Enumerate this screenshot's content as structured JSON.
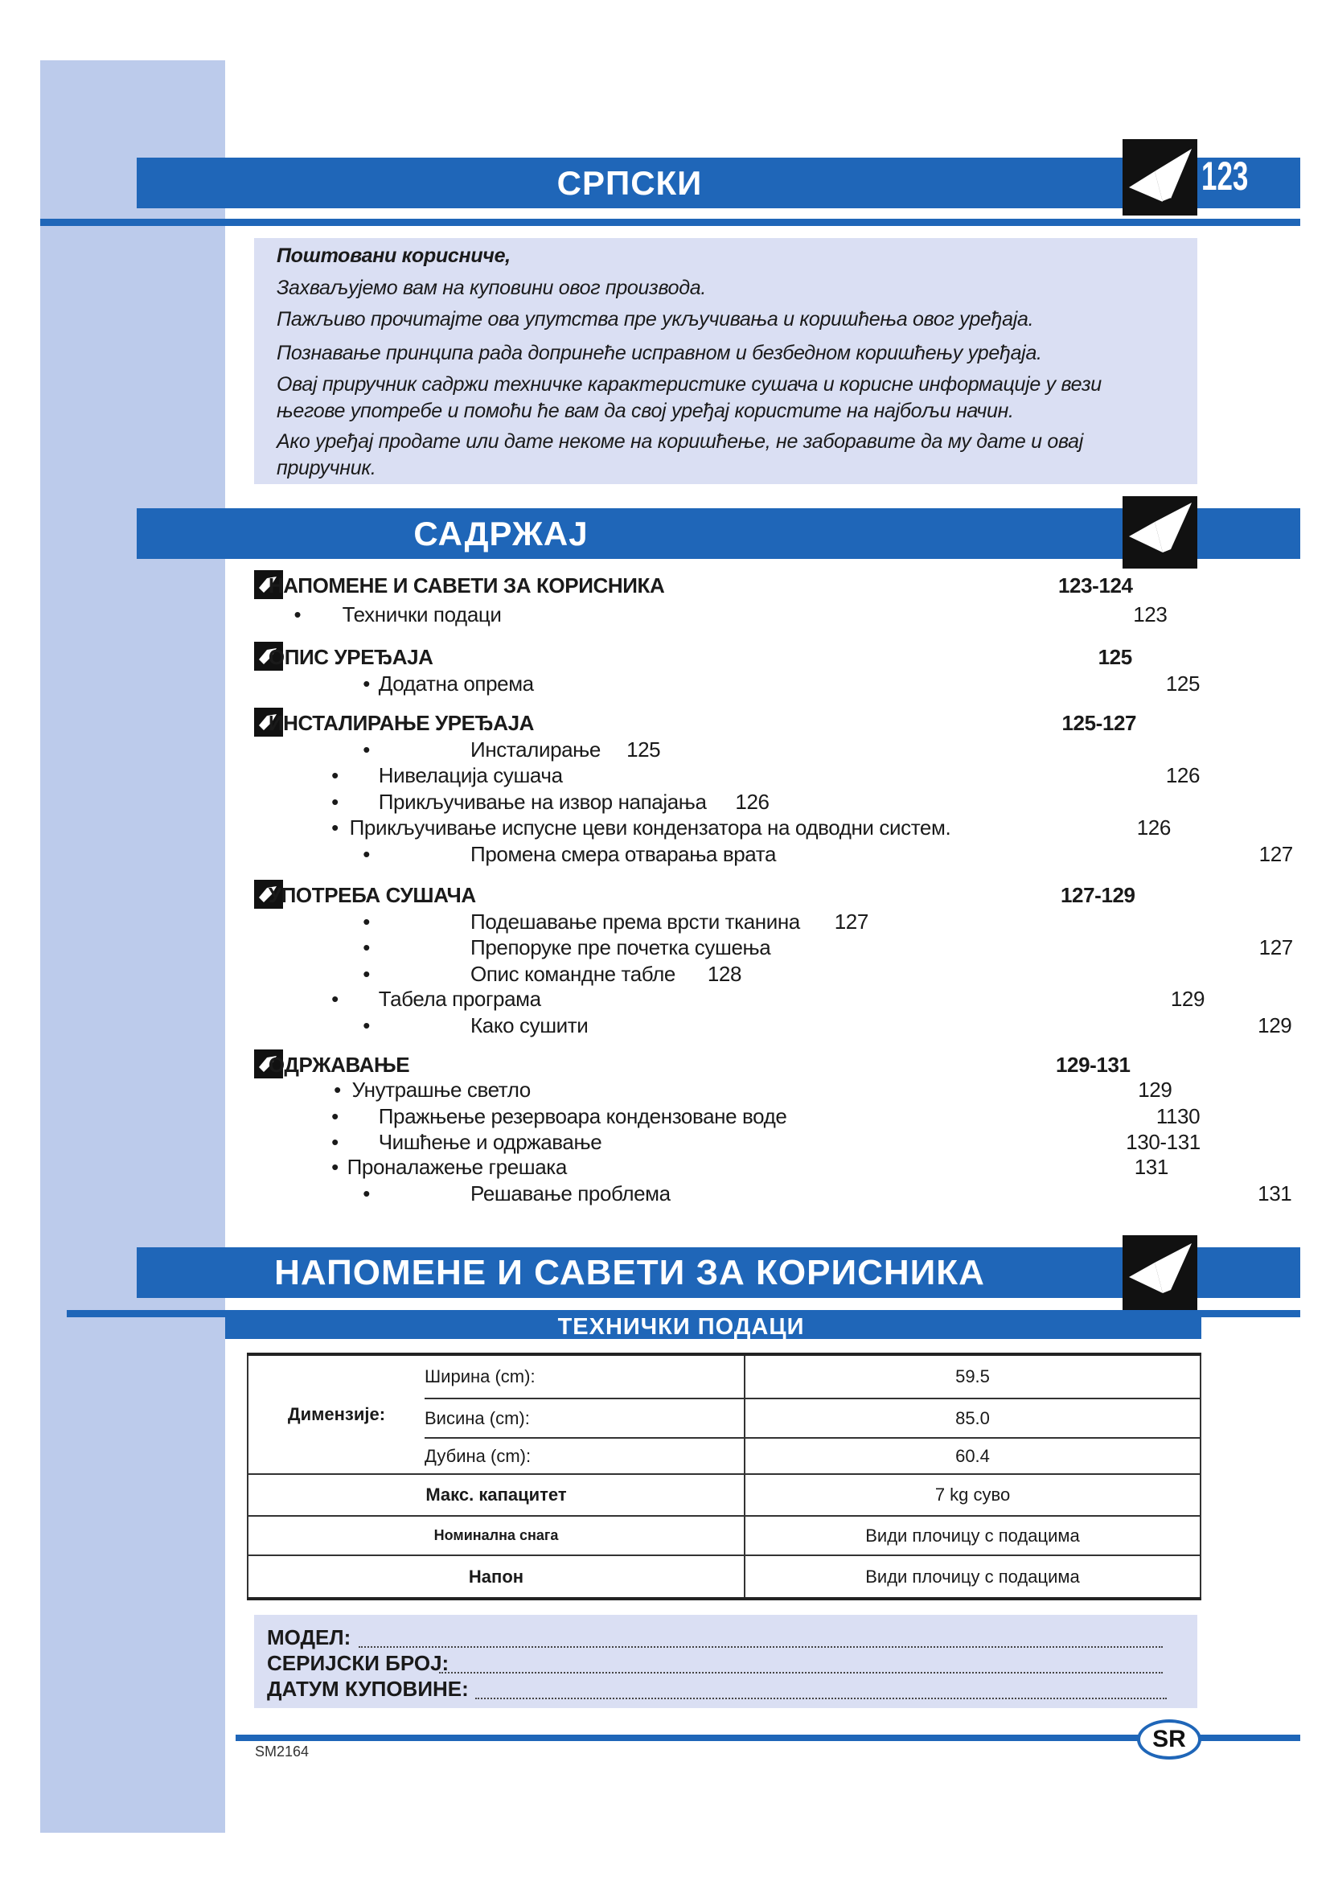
{
  "header": {
    "title": "СРПСКИ",
    "page_number": "123"
  },
  "intro": {
    "greeting": "Поштовани корисниче,",
    "lines": [
      "Захваљујемо вам на куповини овог производа.",
      "Пажљиво прочитајте ова упутства пре укључивања и коришћења овог уређаја.",
      "Познавање принципа рада допринеће исправном и безбедном коришћењу уређаја.",
      "Овај приручник садржи техничке карактеристике сушача и корисне информације у вези",
      "његове употребе и помоћи ће вам да свој уређај користите на најбољи начин.",
      "Ако уређај продате или дате некоме на коришћење, не заборавите да му дате и овај",
      "приручник."
    ]
  },
  "contents": {
    "title": "САДРЖАЈ",
    "rows": [
      {
        "text": "НАПОМЕНЕ И САВЕТИ ЗА КОРИСНИКА",
        "page": "123-124"
      },
      {
        "text": "Технички подаци",
        "page": "123"
      },
      {
        "text": "ОПИС УРЕЂАЈА",
        "page": "125"
      },
      {
        "text": "Додатна опрема",
        "page": "125"
      },
      {
        "text": "ИНСТАЛИРАЊЕ УРЕЂАЈА",
        "page": "125-127"
      },
      {
        "text": "Инсталирање",
        "page": "125"
      },
      {
        "text": "Нивелација сушача",
        "page": "126"
      },
      {
        "text": "Прикључивање на извор напајања",
        "page": "126"
      },
      {
        "text": "Прикључивање испусне цеви кондензатора на одводни систем.",
        "page": "126"
      },
      {
        "text": "Промена смера отварања врата",
        "page": "127"
      },
      {
        "text": "УПОТРЕБА СУШАЧА",
        "page": "127-129"
      },
      {
        "text": "Подешавање према врсти тканина",
        "page": "127"
      },
      {
        "text": "Препоруке пре почетка сушења",
        "page": "127"
      },
      {
        "text": "Опис командне табле",
        "page": "128"
      },
      {
        "text": "Табела програма",
        "page": "129"
      },
      {
        "text": "Како сушити",
        "page": "129"
      },
      {
        "text": "ОДРЖАВАЊЕ",
        "page": "129-131"
      },
      {
        "text": "Унутрашње светло",
        "page": "129"
      },
      {
        "text": "Пражњење резервоара кондензоване воде",
        "page": "1130"
      },
      {
        "text": "Чишћење и одржавање",
        "page": "130-131"
      },
      {
        "text": "Проналажење грешака",
        "page": "131"
      },
      {
        "text": "Решавање проблема",
        "page": "131"
      }
    ],
    "bullet": "•"
  },
  "notes": {
    "title": "НАПОМЕНЕ И САВЕТИ ЗА КОРИСНИКА",
    "subtitle": "ТЕХНИЧКИ ПОДАЦИ",
    "table": {
      "dimensions_label": "Димензије:",
      "width_label": "Ширина (cm):",
      "width_value": "59.5",
      "height_label": "Висина (cm):",
      "height_value": "85.0",
      "depth_label": "Дубина (cm):",
      "depth_value": "60.4",
      "capacity_label": "Макс. капацитет",
      "capacity_value": "7 kg суво",
      "power_label": "Номинална снага",
      "power_value": "Види плочицу с подацима",
      "voltage_label": "Напон",
      "voltage_value": "Види плочицу с подацима"
    }
  },
  "model_box": {
    "model": "МОДЕЛ:",
    "serial": "СЕРИЈСКИ БРОЈ:",
    "date": "ДАТУМ КУПОВИНЕ:"
  },
  "footer": {
    "code": "SM2164",
    "lang_badge": "SR"
  },
  "colors": {
    "accent_blue": "#1f66b8",
    "sidebar": "#bccbeb",
    "box": "#dadff3"
  },
  "icons": [
    "open-book-icon",
    "section-hand-icon"
  ]
}
